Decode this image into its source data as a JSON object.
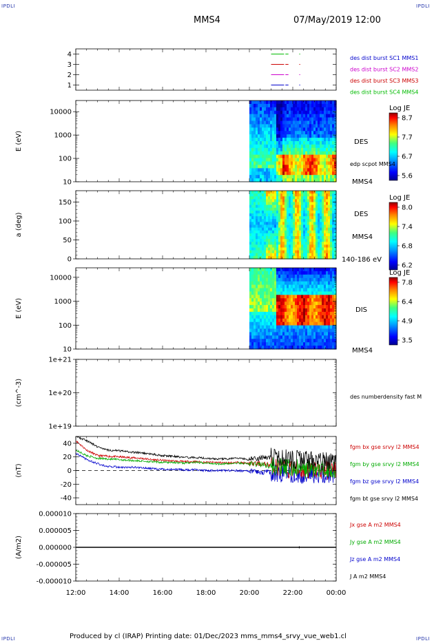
{
  "header": {
    "corner_left_top": "IPDLI",
    "corner_right_top": "IPDLI",
    "corner_left_bottom": "IPDLI",
    "corner_right_bottom": "IPDLI",
    "spacecraft": "MMS4",
    "date": "07/May/2019 12:00"
  },
  "footer": {
    "text": "Produced by cl (IRAP)   Printing date: 01/Dec/2023   mms_mms4_srvy_vue_web1.cl"
  },
  "colors": {
    "mms1": "#0000cc",
    "mms2": "#cc00cc",
    "mms3": "#cc0000",
    "mms4": "#00bb00",
    "bx": "#cc0000",
    "by": "#00aa00",
    "bz": "#0000cc",
    "bt": "#000000"
  },
  "chart_data": [
    {
      "type": "line",
      "panel": "burst-intervals",
      "ylim": [
        0.5,
        4.5
      ],
      "yticks": [
        "1",
        "2",
        "3",
        "4"
      ],
      "legend": [
        "des dist burst SC1 MMS1",
        "des dist burst SC2 MMS2",
        "des dist burst SC3 MMS3",
        "des dist burst SC4 MMS4"
      ],
      "series": [
        {
          "level": 4,
          "color": "#00bb00",
          "segments": [
            [
              21.0,
              21.6
            ],
            [
              21.66,
              21.8
            ],
            [
              22.3,
              22.34
            ]
          ]
        },
        {
          "level": 3,
          "color": "#cc0000",
          "segments": [
            [
              21.0,
              21.6
            ],
            [
              21.66,
              21.8
            ],
            [
              22.3,
              22.34
            ]
          ]
        },
        {
          "level": 2,
          "color": "#cc00cc",
          "segments": [
            [
              21.0,
              21.6
            ],
            [
              21.66,
              21.8
            ],
            [
              22.3,
              22.34
            ]
          ]
        },
        {
          "level": 1,
          "color": "#0000cc",
          "segments": [
            [
              21.0,
              21.6
            ],
            [
              21.66,
              21.8
            ],
            [
              22.3,
              22.34
            ]
          ]
        }
      ]
    },
    {
      "type": "heatmap",
      "panel": "des-energy",
      "ylabel": "E (eV)",
      "yscale": "log",
      "ylim": [
        10,
        30000
      ],
      "yticks": [
        "10",
        "100",
        "1000",
        "10000"
      ],
      "data_start_hour": 20.0,
      "label": "DES",
      "label2": "edp scpot MMS4",
      "label3": "MMS4",
      "colorbar": {
        "title": "Log JE",
        "ticks": [
          "8.7",
          "7.7",
          "6.7",
          "5.6"
        ]
      }
    },
    {
      "type": "heatmap",
      "panel": "des-pitch",
      "ylabel": "a (deg)",
      "ylim": [
        0,
        180
      ],
      "yticks": [
        "0",
        "50",
        "100",
        "150"
      ],
      "data_start_hour": 20.0,
      "label": "DES",
      "label2": "MMS4",
      "label3": "140-186 eV",
      "colorbar": {
        "title": "Log JE",
        "ticks": [
          "8.0",
          "7.4",
          "6.8",
          "6.2"
        ]
      }
    },
    {
      "type": "heatmap",
      "panel": "dis-energy",
      "ylabel": "E (eV)",
      "yscale": "log",
      "ylim": [
        10,
        25000
      ],
      "yticks": [
        "10",
        "100",
        "1000",
        "10000"
      ],
      "data_start_hour": 20.0,
      "label": "DIS",
      "label2": "MMS4",
      "colorbar": {
        "title": "Log JE",
        "ticks": [
          "7.8",
          "6.4",
          "4.9",
          "3.5"
        ]
      }
    },
    {
      "type": "line",
      "panel": "density",
      "ylabel": "(cm^-3)",
      "yscale": "log",
      "ylim": [
        1e+19,
        1e+21
      ],
      "yticks": [
        "1e+19",
        "1e+20",
        "1e+21"
      ],
      "legend": [
        "des numberdensity fast M"
      ],
      "series": []
    },
    {
      "type": "line",
      "panel": "magnetic-field",
      "ylabel": "(nT)",
      "ylim": [
        -50,
        50
      ],
      "yticks": [
        "-40",
        "-20",
        "0",
        "20",
        "40"
      ],
      "legend": [
        "fgm bx gse srvy l2 MMS4",
        "fgm by gse srvy l2 MMS4",
        "fgm bz gse srvy l2 MMS4",
        "fgm bt gse srvy l2 MMS4"
      ],
      "series": [
        {
          "name": "fgm bx gse srvy l2 MMS4",
          "x": [
            12,
            12.5,
            13,
            13.5,
            14,
            14.5,
            15,
            15.5,
            16,
            16.5,
            17,
            17.5,
            18,
            18.5,
            19,
            19.5,
            20,
            20.5,
            21,
            21.5,
            22,
            22.5,
            23,
            23.5,
            24
          ],
          "y": [
            44,
            30,
            22,
            21,
            20,
            19,
            18,
            16,
            15,
            14,
            13,
            13,
            12,
            12,
            11,
            12,
            10,
            10,
            8,
            3,
            2,
            0,
            1,
            0,
            2
          ]
        },
        {
          "name": "fgm by gse srvy l2 MMS4",
          "x": [
            12,
            12.5,
            13,
            13.5,
            14,
            14.5,
            15,
            15.5,
            16,
            16.5,
            17,
            17.5,
            18,
            18.5,
            19,
            19.5,
            20,
            20.5,
            21,
            21.5,
            22,
            22.5,
            23,
            23.5,
            24
          ],
          "y": [
            30,
            22,
            18,
            17,
            16,
            15,
            14,
            13,
            12,
            12,
            11,
            12,
            11,
            10,
            10,
            11,
            10,
            9,
            7,
            4,
            3,
            2,
            2,
            1,
            2
          ]
        },
        {
          "name": "fgm bz gse srvy l2 MMS4",
          "x": [
            12,
            12.5,
            13,
            13.5,
            14,
            14.5,
            15,
            15.5,
            16,
            16.5,
            17,
            17.5,
            18,
            18.5,
            19,
            19.5,
            20,
            20.5,
            21,
            21.5,
            22,
            22.5,
            23,
            23.5,
            24
          ],
          "y": [
            25,
            16,
            10,
            6,
            5,
            5,
            4,
            3,
            2,
            2,
            1,
            1,
            0,
            0,
            0,
            0,
            -1,
            -2,
            -3,
            -5,
            -4,
            -6,
            -5,
            -6,
            -5
          ]
        },
        {
          "name": "fgm bt gse srvy l2 MMS4",
          "x": [
            12,
            12.5,
            13,
            13.5,
            14,
            14.5,
            15,
            15.5,
            16,
            16.5,
            17,
            17.5,
            18,
            18.5,
            19,
            19.5,
            20,
            20.5,
            21,
            21.5,
            22,
            22.5,
            23,
            23.5,
            24
          ],
          "y": [
            50,
            44,
            35,
            30,
            29,
            27,
            26,
            24,
            22,
            21,
            19,
            19,
            18,
            17,
            17,
            18,
            16,
            18,
            20,
            18,
            16,
            15,
            14,
            13,
            14
          ]
        }
      ],
      "reference_line": 0
    },
    {
      "type": "line",
      "panel": "current-density",
      "ylabel": "(A/m2)",
      "ylim": [
        -1e-05,
        1e-05
      ],
      "yticks": [
        "-0.000010",
        "-0.000005",
        "0.000000",
        "0.000005",
        "0.000010"
      ],
      "legend": [
        "Jx gse A m2 MMS4",
        "Jy gse A m2 MMS4",
        "Jz gse A m2 MMS4",
        "J A m2 MMS4"
      ],
      "series": [],
      "xlim": [
        12,
        24
      ],
      "xticks": [
        "12:00",
        "14:00",
        "16:00",
        "18:00",
        "20:00",
        "22:00",
        "00:00"
      ]
    }
  ]
}
